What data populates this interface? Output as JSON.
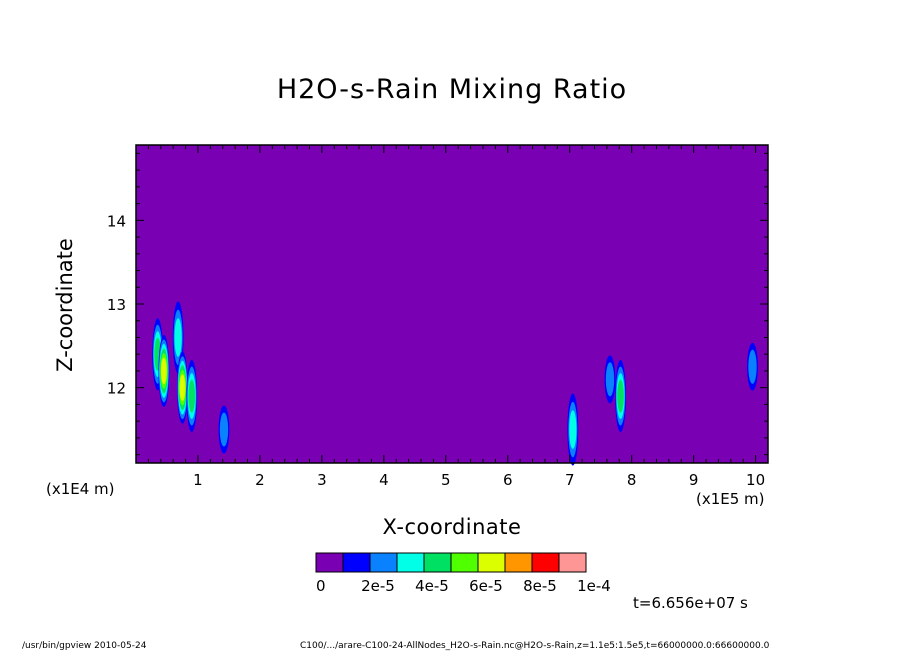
{
  "chart_data": {
    "type": "heatmap",
    "title": "H2O-s-Rain Mixing Ratio",
    "xlabel": "X-coordinate",
    "ylabel": "Z-coordinate",
    "x_unit_label": "(x1E5 m)",
    "y_unit_label": "(x1E4 m)",
    "xlim": [
      0.0,
      10.2
    ],
    "ylim": [
      11.1,
      14.9
    ],
    "x_ticks": [
      "1",
      "2",
      "3",
      "4",
      "5",
      "6",
      "7",
      "8",
      "9",
      "10"
    ],
    "y_ticks": [
      "12",
      "13",
      "14"
    ],
    "background_value": 0,
    "colorbar": {
      "colors": [
        "#7a00b4",
        "#0000ff",
        "#0a82ff",
        "#00ffe6",
        "#00e164",
        "#50ff00",
        "#dcff00",
        "#ff9600",
        "#ff0000",
        "#ff9696"
      ],
      "labels": [
        "0",
        "2e-5",
        "4e-5",
        "6e-5",
        "8e-5",
        "1e-4"
      ]
    },
    "features": [
      {
        "x": 0.35,
        "z": 12.4,
        "peak": 4e-05
      },
      {
        "x": 0.45,
        "z": 12.2,
        "peak": 6e-05
      },
      {
        "x": 0.68,
        "z": 12.6,
        "peak": 3e-05
      },
      {
        "x": 0.75,
        "z": 12.0,
        "peak": 6e-05
      },
      {
        "x": 0.9,
        "z": 11.9,
        "peak": 4e-05
      },
      {
        "x": 1.42,
        "z": 11.5,
        "peak": 2e-05
      },
      {
        "x": 7.05,
        "z": 11.5,
        "peak": 3e-05
      },
      {
        "x": 7.65,
        "z": 12.1,
        "peak": 2e-05
      },
      {
        "x": 7.82,
        "z": 11.9,
        "peak": 4e-05
      },
      {
        "x": 9.95,
        "z": 12.25,
        "peak": 2e-05
      }
    ]
  },
  "annotations": {
    "time": "t=6.656e+07 s",
    "footer_left": "/usr/bin/gpview  2010-05-24",
    "footer_right": "C100/.../arare-C100-24-AllNodes_H2O-s-Rain.nc@H2O-s-Rain,z=1.1e5:1.5e5,t=66000000.0:66600000.0"
  }
}
